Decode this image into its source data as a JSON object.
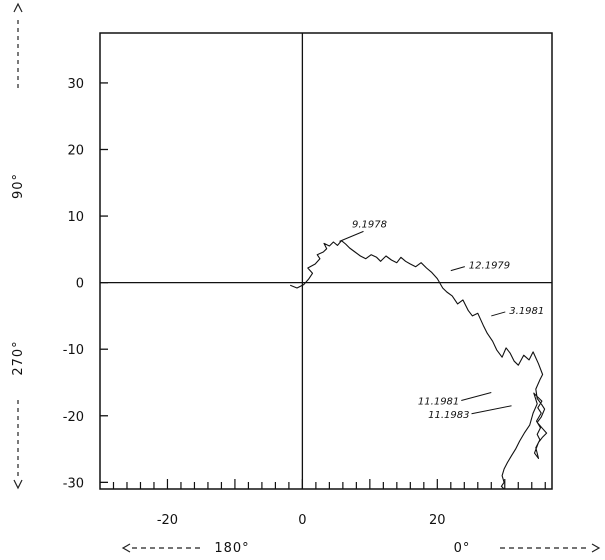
{
  "chart_data": {
    "type": "line",
    "title": "",
    "xlabel": "",
    "ylabel": "",
    "xlim": [
      -30,
      37
    ],
    "ylim": [
      -31,
      37.5
    ],
    "grid": false,
    "x_ticks": [
      -20,
      0,
      20
    ],
    "y_ticks": [
      30,
      20,
      10,
      0,
      -10,
      -20,
      -30
    ],
    "x_tick_labels": [
      "-20",
      "0",
      "20"
    ],
    "y_tick_labels": [
      "30",
      "20",
      "10",
      "0",
      "-10",
      "-20",
      "-30"
    ],
    "direction_labels": {
      "left_bottom": "180°",
      "center_bottom": "0°",
      "left_vertical_top": "90°",
      "left_vertical_bottom": "270°"
    },
    "annotations": [
      {
        "text": "9.1978",
        "x": 5.5,
        "y": 6.2
      },
      {
        "text": "12.1979",
        "x": 22,
        "y": 1.8
      },
      {
        "text": "3.1981",
        "x": 28,
        "y": -5
      },
      {
        "text": "11.1981",
        "x": 28,
        "y": -16.5
      },
      {
        "text": "11.1983",
        "x": 31,
        "y": -18.5
      }
    ],
    "series": [
      {
        "x": [
          -1.8,
          -0.8,
          0.2,
          0.9,
          1.5,
          0.8,
          1.9,
          2.6,
          2.2,
          3.1,
          3.6,
          3.2,
          4.0,
          4.6,
          5.2,
          5.8,
          6.4,
          7.0,
          7.8,
          8.6,
          9.4,
          10.2,
          11.0,
          11.6,
          12.4,
          13.2,
          14.0,
          14.6,
          15.3,
          16.0,
          16.8,
          17.6,
          18.4,
          19.2,
          20.0,
          20.8,
          21.4,
          22.2,
          23.0,
          23.8,
          24.6,
          25.2,
          26.0,
          26.8,
          27.4,
          28.2,
          28.8,
          29.6,
          30.2,
          30.8,
          31.4,
          32.0,
          32.8,
          33.6,
          34.2,
          35.0,
          35.6,
          35.2,
          34.6,
          34.8,
          35.4,
          35.9,
          35.4,
          34.8,
          35.5,
          36.2,
          35.6,
          35.0,
          34.4,
          35.0,
          34.6,
          35.2,
          34.8,
          35.3,
          34.7,
          35.4,
          34.9,
          35.5,
          34.9,
          34.3,
          34.8,
          34.2,
          33.7,
          32.9,
          32.2,
          31.6,
          31.0,
          30.4,
          29.9,
          29.6,
          29.9,
          29.5,
          29.9
        ],
        "y": [
          -0.4,
          -0.8,
          -0.3,
          0.5,
          1.4,
          2.2,
          2.8,
          3.6,
          4.2,
          4.6,
          5.1,
          5.9,
          5.5,
          6.1,
          5.6,
          6.3,
          5.8,
          5.2,
          4.6,
          4.0,
          3.6,
          4.2,
          3.8,
          3.2,
          4.0,
          3.4,
          3.0,
          3.8,
          3.2,
          2.8,
          2.4,
          3.0,
          2.2,
          1.5,
          0.6,
          -0.8,
          -1.4,
          -2.0,
          -3.2,
          -2.6,
          -4.2,
          -5.0,
          -4.6,
          -6.4,
          -7.6,
          -8.8,
          -10.1,
          -11.2,
          -9.8,
          -10.6,
          -11.8,
          -12.4,
          -10.9,
          -11.6,
          -10.4,
          -12.2,
          -13.8,
          -14.6,
          -16.0,
          -17.4,
          -18.2,
          -19.0,
          -20.2,
          -21.0,
          -21.8,
          -22.6,
          -23.2,
          -24.0,
          -25.6,
          -26.4,
          -24.8,
          -23.6,
          -22.8,
          -21.8,
          -20.8,
          -19.6,
          -18.8,
          -17.8,
          -17.2,
          -16.6,
          -18.2,
          -19.6,
          -21.4,
          -22.6,
          -23.8,
          -25.0,
          -26.0,
          -27.0,
          -28.0,
          -29.0,
          -30.0,
          -30.6,
          -31.0
        ]
      }
    ]
  }
}
